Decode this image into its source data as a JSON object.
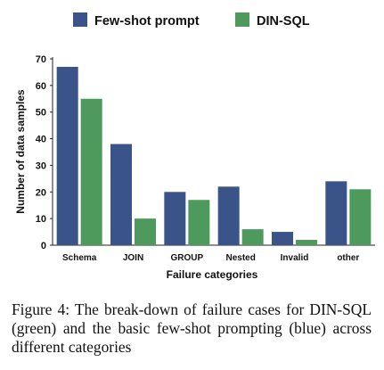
{
  "chart_data": {
    "type": "bar",
    "categories": [
      "Schema",
      "JOIN",
      "GROUP",
      "Nested",
      "Invalid",
      "other"
    ],
    "series": [
      {
        "name": "Few-shot prompt",
        "values": [
          67,
          38,
          20,
          22,
          5,
          24
        ],
        "color": "#3a5389"
      },
      {
        "name": "DIN-SQL",
        "values": [
          55,
          10,
          17,
          6,
          2,
          21
        ],
        "color": "#4e9a5c"
      }
    ],
    "title": "",
    "xlabel": "Failure categories",
    "ylabel": "Number of data samples",
    "ylim": [
      0,
      70
    ],
    "yticks": [
      0,
      10,
      20,
      30,
      40,
      50,
      60,
      70
    ],
    "grid": false,
    "legend_position": "top"
  },
  "caption": "Figure 4: The break-down of failure cases for DIN-SQL (green) and the basic few-shot prompting (blue) across different categories"
}
